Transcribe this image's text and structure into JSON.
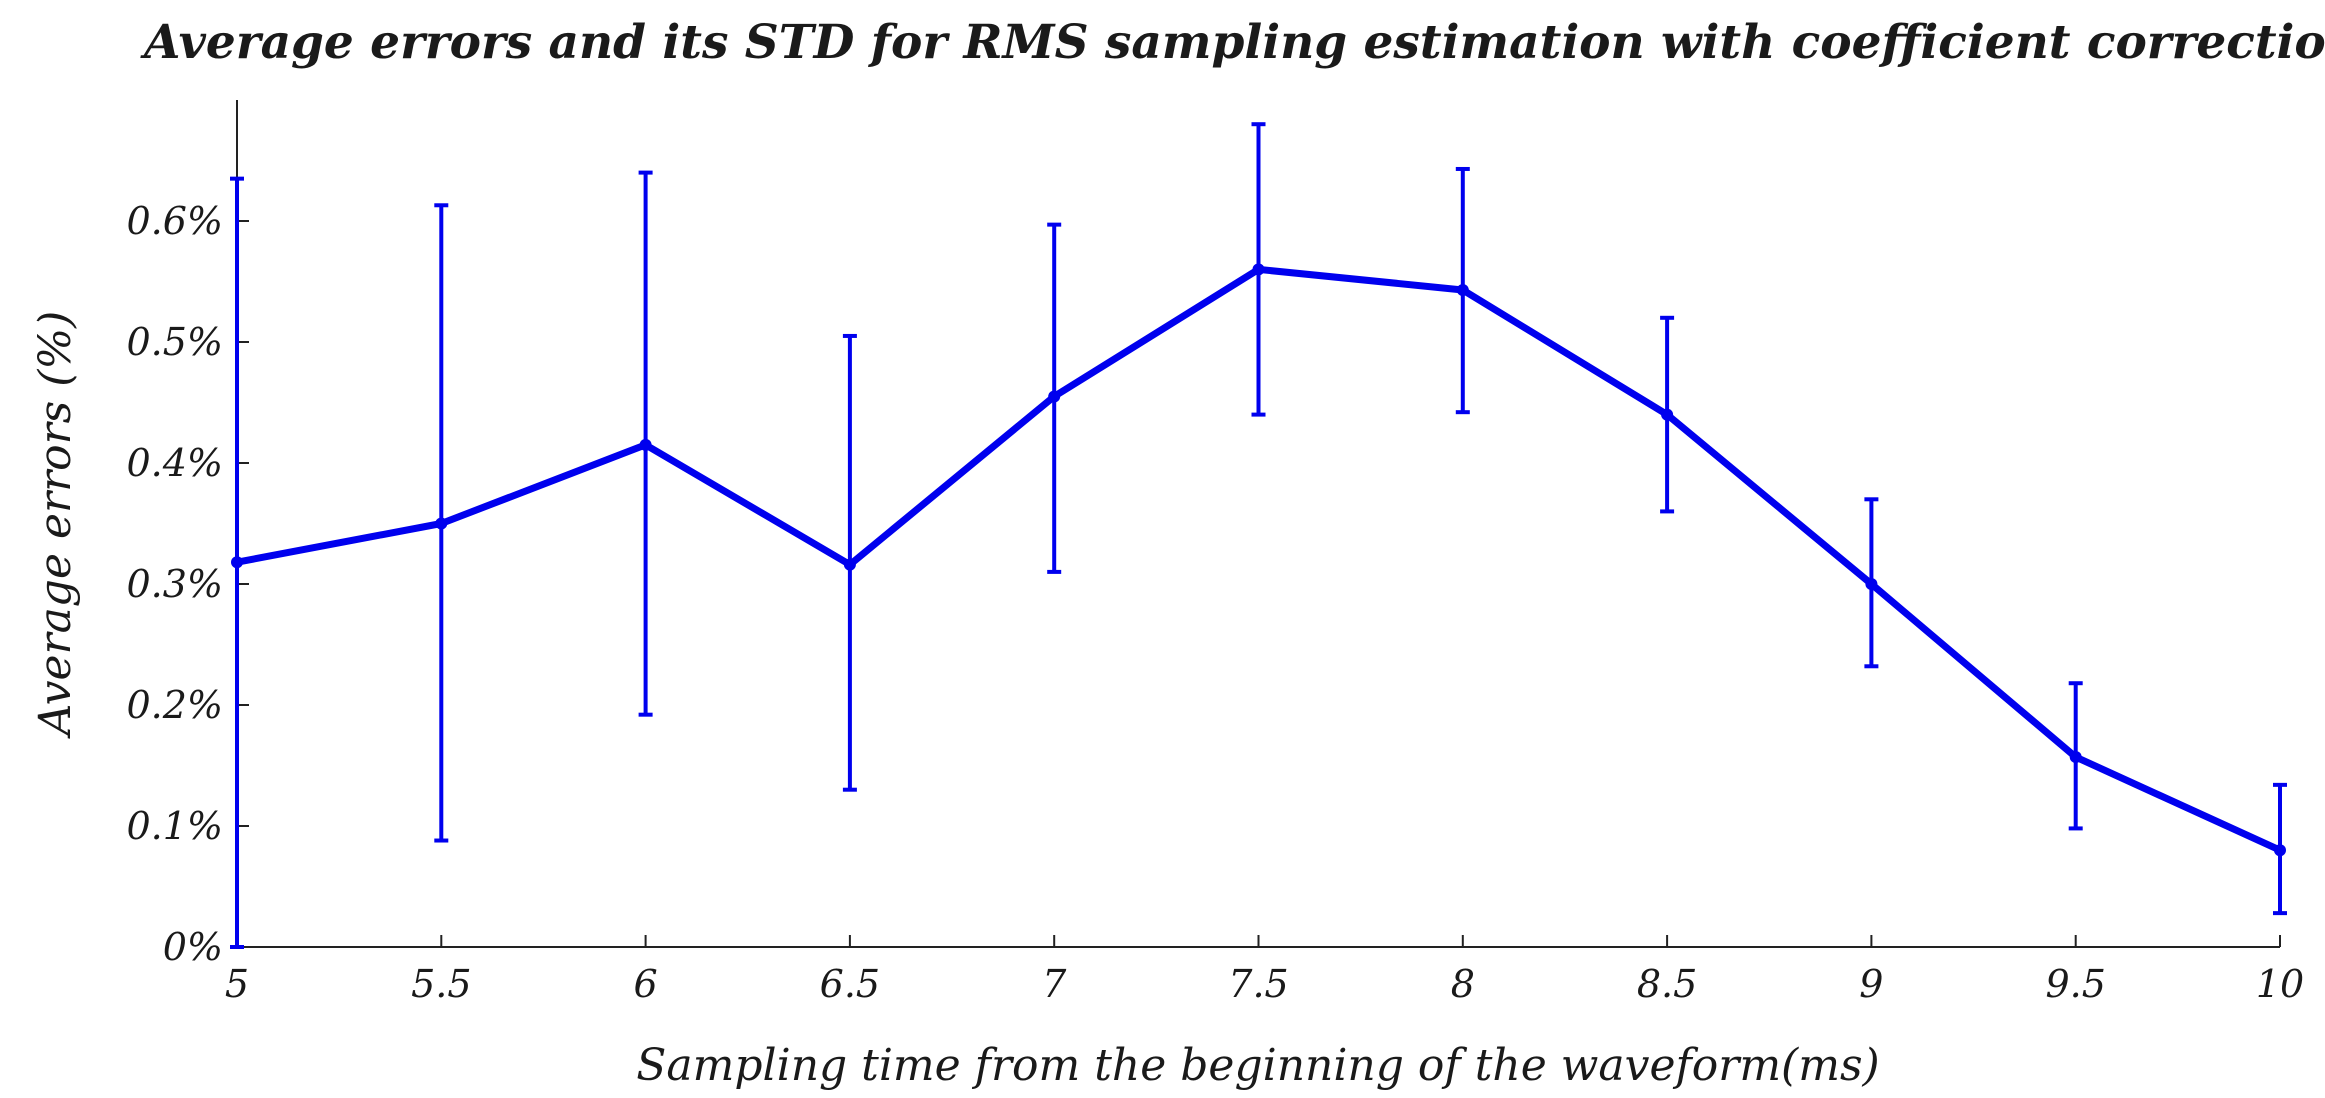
{
  "chart_data": {
    "type": "line",
    "title": "Average errors and its STD for RMS sampling estimation with coefficient correction",
    "xlabel": "Sampling time from the beginning of the waveform(ms)",
    "ylabel": "Average errors (%)",
    "xlim": [
      5,
      10
    ],
    "ylim": [
      0,
      0.7
    ],
    "x_ticks": [
      5,
      5.5,
      6,
      6.5,
      7,
      7.5,
      8,
      8.5,
      9,
      9.5,
      10
    ],
    "x_tick_labels": [
      "5",
      "5.5",
      "6",
      "6.5",
      "7",
      "7.5",
      "8",
      "8.5",
      "9",
      "9.5",
      "10"
    ],
    "y_ticks": [
      0,
      0.1,
      0.2,
      0.3,
      0.4,
      0.5,
      0.6
    ],
    "y_tick_labels": [
      "0%",
      "0.1%",
      "0.2%",
      "0.3%",
      "0.4%",
      "0.5%",
      "0.6%"
    ],
    "grid": false,
    "legend": "none",
    "series": [
      {
        "name": "Average error",
        "color": "#0000ee",
        "x": [
          5,
          5.5,
          6,
          6.5,
          7,
          7.5,
          8,
          8.5,
          9,
          9.5,
          10
        ],
        "values": [
          0.318,
          0.35,
          0.415,
          0.316,
          0.455,
          0.56,
          0.543,
          0.44,
          0.3,
          0.157,
          0.08
        ],
        "error_lower": [
          0.0,
          0.088,
          0.192,
          0.13,
          0.31,
          0.44,
          0.442,
          0.36,
          0.232,
          0.098,
          0.028
        ],
        "error_upper": [
          0.635,
          0.613,
          0.64,
          0.505,
          0.597,
          0.68,
          0.643,
          0.52,
          0.37,
          0.218,
          0.134
        ]
      }
    ]
  }
}
